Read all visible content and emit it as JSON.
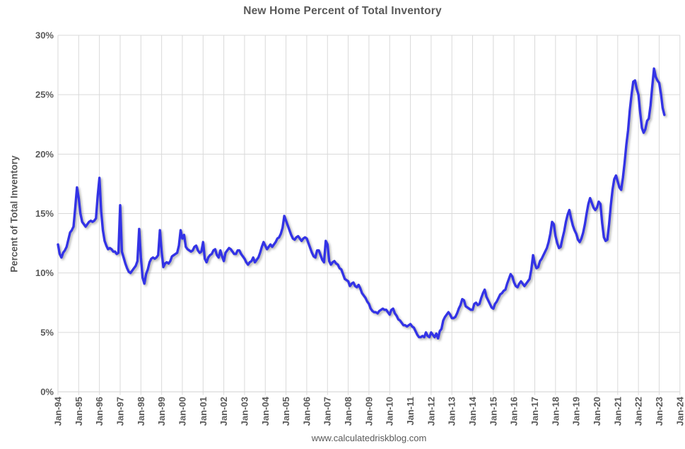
{
  "page": {
    "title": "New Home Percent of Total Inventory",
    "source": "www.calculatedriskblog.com"
  },
  "style": {
    "background": "#ffffff",
    "text_color": "#595959",
    "grid_color": "#d9d9d9",
    "line_color": "#3333e6"
  },
  "chart_data": {
    "type": "line",
    "title": "New Home Percent of Total Inventory",
    "ylabel": "Percent of Total Inventory",
    "xlabel": "",
    "grid": true,
    "legend": false,
    "ylim": [
      0,
      30
    ],
    "y_tick_step": 5,
    "y_tick_labels": [
      "0%",
      "5%",
      "10%",
      "15%",
      "20%",
      "25%",
      "30%"
    ],
    "x_tick_labels": [
      "Jan-94",
      "Jan-95",
      "Jan-96",
      "Jan-97",
      "Jan-98",
      "Jan-99",
      "Jan-00",
      "Jan-01",
      "Jan-02",
      "Jan-03",
      "Jan-04",
      "Jan-05",
      "Jan-06",
      "Jan-07",
      "Jan-08",
      "Jan-09",
      "Jan-10",
      "Jan-11",
      "Jan-12",
      "Jan-13",
      "Jan-14",
      "Jan-15",
      "Jan-16",
      "Jan-17",
      "Jan-18",
      "Jan-19",
      "Jan-20",
      "Jan-21",
      "Jan-22",
      "Jan-23",
      "Jan-24"
    ],
    "series_name": "New home percent of total inventory",
    "frequency": "monthly",
    "x_start_month": "Jan-1994",
    "x_end_month": "Apr-2023",
    "values": [
      12.4,
      11.6,
      11.3,
      11.7,
      11.9,
      12.2,
      12.8,
      13.4,
      13.6,
      13.9,
      15.5,
      17.2,
      16.3,
      15.0,
      14.3,
      14.1,
      13.9,
      14.1,
      14.3,
      14.4,
      14.3,
      14.4,
      14.6,
      16.5,
      18.0,
      15.2,
      13.6,
      12.7,
      12.3,
      12.0,
      12.1,
      12.0,
      11.8,
      11.8,
      11.6,
      11.7,
      15.7,
      11.8,
      11.3,
      10.8,
      10.4,
      10.1,
      10.0,
      10.2,
      10.4,
      10.6,
      11.0,
      13.7,
      11.3,
      9.6,
      9.1,
      9.9,
      10.3,
      10.9,
      11.2,
      11.3,
      11.2,
      11.3,
      11.5,
      13.6,
      11.8,
      10.5,
      10.8,
      10.9,
      10.8,
      11.0,
      11.4,
      11.5,
      11.6,
      11.7,
      12.3,
      13.6,
      12.9,
      13.2,
      12.2,
      12.0,
      11.9,
      11.8,
      11.9,
      12.2,
      12.3,
      11.9,
      11.7,
      11.8,
      12.6,
      11.2,
      10.9,
      11.3,
      11.5,
      11.6,
      11.9,
      12.0,
      11.5,
      11.3,
      11.9,
      11.4,
      11.0,
      11.7,
      11.9,
      12.1,
      12.0,
      11.8,
      11.6,
      11.6,
      11.9,
      11.9,
      11.6,
      11.4,
      11.2,
      10.9,
      10.7,
      10.9,
      11.0,
      11.3,
      10.9,
      11.1,
      11.3,
      11.7,
      12.2,
      12.6,
      12.3,
      12.0,
      12.2,
      12.4,
      12.2,
      12.4,
      12.6,
      12.9,
      13.0,
      13.3,
      13.8,
      14.8,
      14.4,
      14.0,
      13.6,
      13.2,
      12.9,
      12.8,
      13.0,
      13.1,
      12.9,
      12.7,
      12.9,
      13.0,
      12.9,
      12.5,
      12.1,
      11.7,
      11.4,
      11.3,
      11.9,
      11.9,
      11.5,
      11.1,
      10.9,
      12.7,
      12.4,
      11.0,
      10.7,
      10.9,
      11.0,
      10.8,
      10.7,
      10.4,
      10.3,
      9.9,
      9.5,
      9.4,
      9.3,
      8.9,
      9.1,
      9.2,
      8.9,
      8.8,
      9.0,
      8.7,
      8.3,
      8.1,
      7.9,
      7.6,
      7.4,
      7.0,
      6.8,
      6.7,
      6.7,
      6.6,
      6.8,
      6.9,
      7.0,
      6.9,
      6.9,
      6.7,
      6.5,
      6.9,
      7.0,
      6.6,
      6.4,
      6.1,
      6.0,
      5.8,
      5.6,
      5.6,
      5.5,
      5.6,
      5.7,
      5.5,
      5.4,
      5.1,
      4.8,
      4.6,
      4.6,
      4.7,
      4.6,
      5.0,
      4.7,
      4.6,
      5.0,
      4.8,
      4.6,
      4.9,
      4.5,
      5.1,
      5.3,
      6.0,
      6.3,
      6.5,
      6.7,
      6.5,
      6.2,
      6.2,
      6.3,
      6.6,
      7.0,
      7.3,
      7.8,
      7.7,
      7.2,
      7.1,
      7.0,
      6.9,
      6.9,
      7.4,
      7.5,
      7.3,
      7.4,
      7.9,
      8.3,
      8.6,
      8.0,
      7.7,
      7.4,
      7.1,
      7.0,
      7.4,
      7.6,
      7.9,
      8.2,
      8.3,
      8.5,
      8.6,
      9.1,
      9.5,
      9.9,
      9.7,
      9.2,
      8.9,
      8.8,
      9.1,
      9.3,
      9.1,
      8.9,
      9.1,
      9.3,
      9.5,
      10.3,
      11.5,
      10.8,
      10.4,
      10.5,
      11.0,
      11.2,
      11.5,
      11.8,
      12.1,
      12.6,
      13.3,
      14.3,
      14.1,
      13.1,
      12.5,
      12.1,
      12.2,
      12.9,
      13.5,
      14.3,
      14.9,
      15.3,
      14.6,
      14.0,
      13.6,
      13.3,
      12.8,
      12.6,
      12.9,
      13.4,
      14.1,
      15.0,
      15.8,
      16.3,
      15.9,
      15.5,
      15.3,
      15.5,
      16.0,
      15.8,
      14.2,
      13.0,
      12.7,
      12.8,
      14.1,
      15.7,
      17.0,
      17.9,
      18.2,
      17.7,
      17.2,
      17.0,
      18.0,
      19.3,
      20.8,
      22.0,
      23.7,
      25.0,
      26.1,
      26.2,
      25.5,
      25.0,
      23.5,
      22.2,
      21.8,
      22.1,
      22.8,
      23.0,
      24.1,
      25.7,
      27.2,
      26.5,
      26.2,
      26.0,
      25.1,
      23.9,
      23.3
    ]
  }
}
